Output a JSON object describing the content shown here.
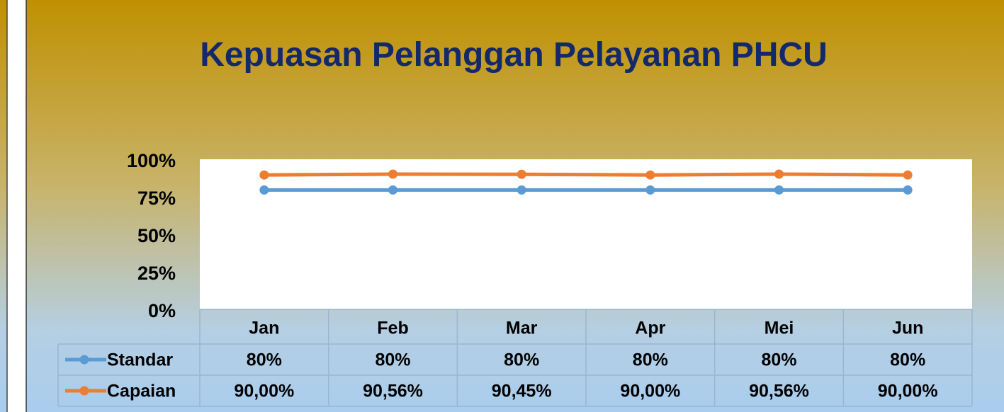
{
  "chart_data": {
    "type": "line",
    "title": "Kepuasan Pelanggan Pelayanan PHCU",
    "categories": [
      "Jan",
      "Feb",
      "Mar",
      "Apr",
      "Mei",
      "Jun"
    ],
    "series": [
      {
        "name": "Standar",
        "color": "#5b9bd5",
        "values": [
          80,
          80,
          80,
          80,
          80,
          80
        ],
        "value_labels": [
          "80%",
          "80%",
          "80%",
          "80%",
          "80%",
          "80%"
        ]
      },
      {
        "name": "Capaian",
        "color": "#ed7d31",
        "values": [
          90.0,
          90.56,
          90.45,
          90.0,
          90.56,
          90.0
        ],
        "value_labels": [
          "90,00%",
          "90,56%",
          "90,45%",
          "90,00%",
          "90,56%",
          "90,00%"
        ]
      }
    ],
    "ylim": [
      0,
      100
    ],
    "yticks": [
      {
        "value": 0,
        "label": "0%"
      },
      {
        "value": 25,
        "label": "25%"
      },
      {
        "value": 50,
        "label": "50%"
      },
      {
        "value": 75,
        "label": "75%"
      },
      {
        "value": 100,
        "label": "100%"
      }
    ],
    "grid": false
  }
}
